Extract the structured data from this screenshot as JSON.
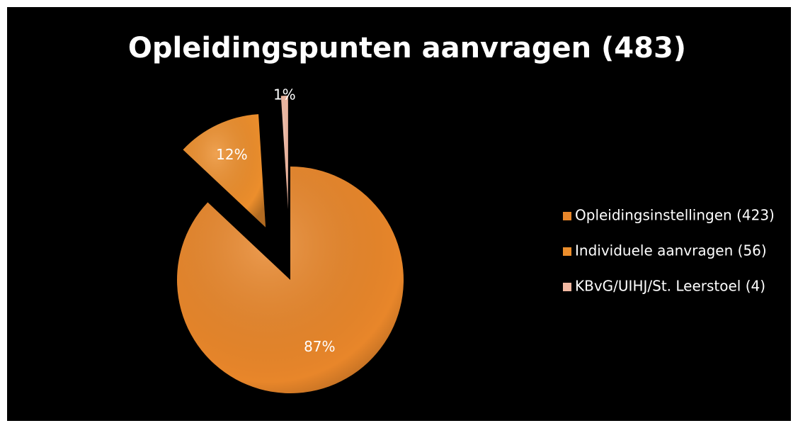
{
  "chart_data": {
    "type": "pie",
    "title": "Opleidingspunten aanvragen (483)",
    "categories": [
      "Opleidingsinstellingen (423)",
      "Individuele aanvragen (56)",
      "KBvG/UIHJ/St. Leerstoel (4)"
    ],
    "values": [
      87,
      12,
      1
    ],
    "value_labels": [
      "87%",
      "12%",
      "1%"
    ],
    "colors": [
      "#e8862a",
      "#ec8e2c",
      "#f2b9a2"
    ],
    "legend": "right"
  }
}
